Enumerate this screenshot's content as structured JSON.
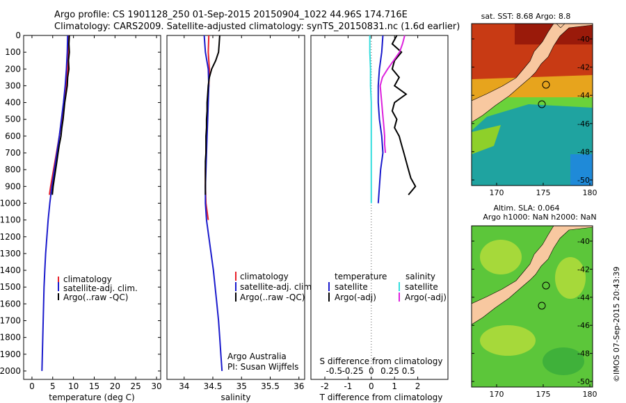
{
  "header": {
    "line1": "Argo profile: CS 1901128_250 01-Sep-2015 20150904_1022 44.96S 174.716E",
    "line2": "Climatology: CARS2009. Satellite-adjusted climatology: synTS_20150831.nc (1.6d earlier)"
  },
  "colors": {
    "climatology": "#e8202a",
    "satellite": "#1a1acc",
    "argo": "#000000",
    "satellite_salinity": "#33dddd",
    "argo_adj_salinity": "#dd22dd"
  },
  "depth_ticks": [
    0,
    100,
    200,
    300,
    400,
    500,
    600,
    700,
    800,
    900,
    1000,
    1100,
    1200,
    1300,
    1400,
    1500,
    1600,
    1700,
    1800,
    1900,
    2000
  ],
  "chart_data": [
    {
      "type": "line",
      "xlabel": "temperature (deg C)",
      "xlim": [
        -2,
        31
      ],
      "ylim": [
        2050,
        0
      ],
      "xticks": [
        0,
        5,
        10,
        15,
        20,
        25,
        30
      ],
      "legend": [
        "climatology",
        "satellite-adj. clim.",
        "Argo(..raw -QC)"
      ],
      "series": [
        {
          "name": "climatology",
          "depth": [
            0,
            100,
            200,
            300,
            400,
            500,
            600,
            700,
            800,
            900,
            950
          ],
          "values": [
            8.8,
            8.7,
            8.6,
            8.2,
            7.8,
            7.2,
            6.6,
            5.9,
            5.2,
            4.5,
            4.2
          ]
        },
        {
          "name": "satellite-adj. clim.",
          "depth": [
            0,
            100,
            200,
            300,
            400,
            500,
            600,
            700,
            800,
            900,
            1000,
            1100,
            1200,
            1300,
            1400,
            1500,
            1600,
            1700,
            1800,
            1900,
            2000
          ],
          "values": [
            8.6,
            8.5,
            8.3,
            8.0,
            7.6,
            7.1,
            6.6,
            6.0,
            5.4,
            4.8,
            4.3,
            3.9,
            3.6,
            3.3,
            3.1,
            2.9,
            2.8,
            2.7,
            2.6,
            2.5,
            2.4
          ]
        },
        {
          "name": "Argo(..raw -QC)",
          "depth": [
            0,
            50,
            100,
            150,
            200,
            250,
            300,
            350,
            400,
            450,
            500,
            550,
            600,
            650,
            700,
            750,
            800,
            850,
            900,
            950
          ],
          "values": [
            9.0,
            8.9,
            9.0,
            8.8,
            8.9,
            8.6,
            8.5,
            8.2,
            7.9,
            7.7,
            7.5,
            7.2,
            7.0,
            6.6,
            6.3,
            6.0,
            5.7,
            5.4,
            5.1,
            4.9
          ]
        }
      ]
    },
    {
      "type": "line",
      "xlabel": "salinity",
      "xlim": [
        33.7,
        36.1
      ],
      "ylim": [
        2050,
        0
      ],
      "xticks": [
        34,
        34.5,
        35,
        35.5,
        36
      ],
      "xticklabels": [
        "34",
        "34.5",
        "35",
        "35.5",
        "36"
      ],
      "legend": [
        "climatology",
        "satellite-adj. clim.",
        "Argo(..raw -QC)"
      ],
      "annotation": [
        "Argo Australia",
        "PI: Susan Wijffels"
      ],
      "series": [
        {
          "name": "climatology",
          "depth": [
            0,
            100,
            200,
            300,
            400,
            500,
            600,
            700,
            800,
            900,
            1000,
            1100
          ],
          "values": [
            34.43,
            34.42,
            34.44,
            34.43,
            34.41,
            34.4,
            34.39,
            34.38,
            34.37,
            34.37,
            34.38,
            34.42
          ]
        },
        {
          "name": "satellite-adj. clim.",
          "depth": [
            0,
            100,
            200,
            300,
            400,
            500,
            600,
            700,
            800,
            900,
            1000,
            1100,
            1200,
            1300,
            1400,
            1500,
            1600,
            1700,
            1800,
            1900,
            2000
          ],
          "values": [
            34.35,
            34.37,
            34.42,
            34.43,
            34.42,
            34.41,
            34.4,
            34.39,
            34.38,
            34.37,
            34.37,
            34.39,
            34.43,
            34.47,
            34.51,
            34.54,
            34.57,
            34.6,
            34.62,
            34.64,
            34.66
          ]
        },
        {
          "name": "Argo(..raw -QC)",
          "depth": [
            0,
            50,
            100,
            150,
            200,
            250,
            300,
            350,
            400,
            450,
            500,
            550,
            600,
            650,
            700,
            750,
            800,
            850,
            900,
            950
          ],
          "values": [
            34.62,
            34.61,
            34.6,
            34.55,
            34.48,
            34.44,
            34.42,
            34.41,
            34.4,
            34.4,
            34.39,
            34.39,
            34.38,
            34.38,
            34.38,
            34.37,
            34.37,
            34.37,
            34.37,
            34.37
          ]
        }
      ]
    },
    {
      "type": "line",
      "xlabel": "T difference from climatology",
      "xlabel_top": "S difference from climatology",
      "xlim": [
        -2.6,
        3.3
      ],
      "ylim": [
        2050,
        0
      ],
      "xticks": [
        -2,
        -1,
        0,
        1,
        2
      ],
      "xticklabels": [
        "-2",
        "-1",
        "0",
        "1",
        "2"
      ],
      "sticks": [
        "-0.5",
        "-0.25",
        "0",
        "0.25",
        "0.5"
      ],
      "legend_headers": [
        "temperature",
        "salinity"
      ],
      "legend": [
        "satellite",
        "Argo(-adj)",
        "satellite",
        "Argo(-adj)"
      ],
      "series": [
        {
          "name": "temperature satellite",
          "depth": [
            0,
            100,
            200,
            300,
            400,
            500,
            600,
            700,
            800,
            900,
            1000
          ],
          "values": [
            0.5,
            0.45,
            0.35,
            0.3,
            0.3,
            0.35,
            0.45,
            0.5,
            0.4,
            0.35,
            0.3
          ]
        },
        {
          "name": "temperature Argo(-adj)",
          "depth": [
            0,
            50,
            100,
            150,
            200,
            250,
            300,
            350,
            400,
            450,
            500,
            550,
            600,
            650,
            700,
            750,
            800,
            850,
            900,
            950
          ],
          "values": [
            1.1,
            0.9,
            1.3,
            1.0,
            0.9,
            1.2,
            1.0,
            1.5,
            1.0,
            0.9,
            1.1,
            1.0,
            1.2,
            1.3,
            1.4,
            1.5,
            1.6,
            1.7,
            1.9,
            1.6
          ]
        },
        {
          "name": "salinity satellite",
          "depth": [
            0,
            100,
            200,
            300,
            400,
            500,
            600,
            700,
            800,
            900,
            1000
          ],
          "values": [
            -0.02,
            -0.02,
            -0.01,
            -0.01,
            0.0,
            0.0,
            0.0,
            0.0,
            0.0,
            0.0,
            0.0
          ]
        },
        {
          "name": "salinity Argo(-adj)",
          "depth": [
            0,
            50,
            100,
            150,
            200,
            250,
            300,
            350,
            400,
            450,
            500,
            550,
            600,
            650,
            700
          ],
          "values": [
            0.45,
            0.42,
            0.38,
            0.3,
            0.22,
            0.15,
            0.12,
            0.13,
            0.14,
            0.15,
            0.16,
            0.17,
            0.18,
            0.18,
            0.19
          ]
        }
      ]
    }
  ],
  "maps": {
    "top": {
      "title": "sat. SST: 8.68 Argo: 8.8",
      "yticks": [
        "-40",
        "-42",
        "-44",
        "-46",
        "-48",
        "-50"
      ],
      "xticks": [
        "170",
        "175",
        "180"
      ]
    },
    "bottom": {
      "title1": "Altim. SLA: 0.064",
      "title2": "Argo h1000: NaN h2000: NaN",
      "yticks": [
        "-40",
        "-42",
        "-44",
        "-46",
        "-48",
        "-50"
      ],
      "xticks": [
        "170",
        "175",
        "180"
      ]
    },
    "credit": "©IMOS 07-Sep-2015 20:43:39"
  }
}
